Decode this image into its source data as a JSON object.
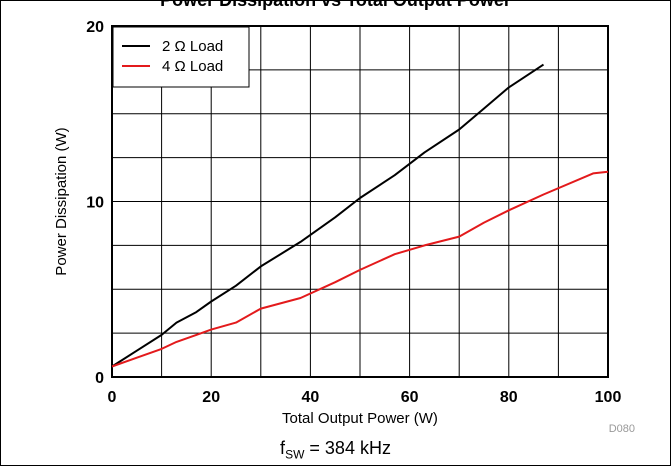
{
  "title_fragment": "Power Dissipation vs Total Output Power",
  "caption": {
    "prefix": "f",
    "sub": "SW",
    "suffix": " = 384 kHz"
  },
  "figure_id": "D080",
  "chart_data": {
    "type": "line",
    "xlabel": "Total Output Power (W)",
    "ylabel": "Power Dissipation (W)",
    "xlim": [
      0,
      100
    ],
    "ylim": [
      0,
      20
    ],
    "xticks": [
      0,
      20,
      40,
      60,
      80,
      100
    ],
    "yticks": [
      0,
      10,
      20
    ],
    "grid": true,
    "legend_position": "top-left",
    "series": [
      {
        "name": "2 Ω Load",
        "color": "#000000",
        "x": [
          0,
          5,
          10,
          13,
          17,
          20,
          25,
          30,
          38,
          45,
          50,
          57,
          63,
          70,
          75,
          80,
          87
        ],
        "y": [
          0.6,
          1.5,
          2.4,
          3.1,
          3.7,
          4.3,
          5.2,
          6.3,
          7.7,
          9.1,
          10.2,
          11.5,
          12.8,
          14.1,
          15.3,
          16.5,
          17.8
        ]
      },
      {
        "name": "4 Ω Load",
        "color": "#e31a1c",
        "x": [
          0,
          5,
          10,
          13,
          17,
          20,
          25,
          30,
          38,
          45,
          50,
          57,
          63,
          70,
          75,
          80,
          87,
          97,
          100
        ],
        "y": [
          0.6,
          1.1,
          1.6,
          2.0,
          2.4,
          2.7,
          3.1,
          3.9,
          4.5,
          5.4,
          6.1,
          7.0,
          7.5,
          8.0,
          8.8,
          9.5,
          10.4,
          11.6,
          11.7
        ]
      }
    ]
  }
}
